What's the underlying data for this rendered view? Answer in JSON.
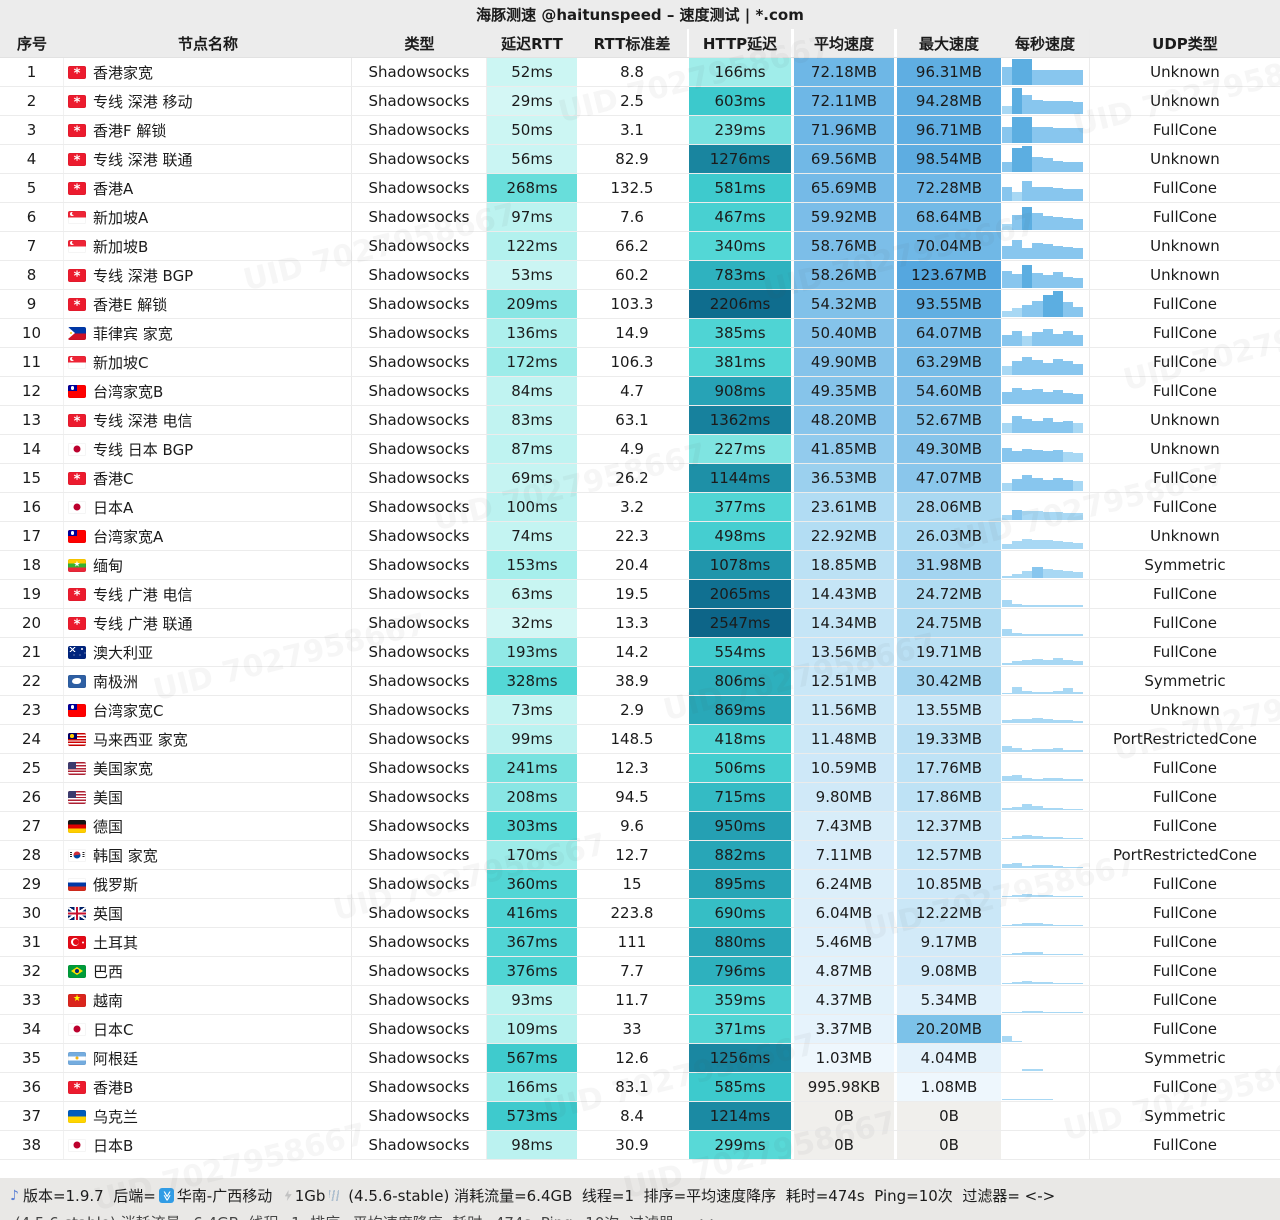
{
  "title": "海豚测速 @haitunspeed – 速度测试 | *.com",
  "columns": [
    "序号",
    "节点名称",
    "类型",
    "延迟RTT",
    "RTT标准差",
    "HTTP延迟",
    "平均速度",
    "最大速度",
    "每秒速度",
    "UDP类型"
  ],
  "watermark": {
    "text": "UID 7027958667"
  },
  "colors": {
    "teal_scale": [
      [
        0,
        "#def9f7"
      ],
      [
        150,
        "#a9efec"
      ],
      [
        300,
        "#57d9d7"
      ],
      [
        600,
        "#3cc9cc"
      ],
      [
        900,
        "#27a4b6"
      ],
      [
        1300,
        "#18839e"
      ],
      [
        2100,
        "#106f90"
      ],
      [
        2600,
        "#0d6487"
      ]
    ],
    "blue_scale": [
      [
        1,
        "#eef7fd"
      ],
      [
        10,
        "#cfe9f8"
      ],
      [
        25,
        "#aedbf2"
      ],
      [
        50,
        "#85c3ea"
      ],
      [
        75,
        "#6bb5e5"
      ],
      [
        100,
        "#5dade1"
      ],
      [
        130,
        "#53a6de"
      ]
    ],
    "zero_speed_bg": "#f0efec",
    "bar_dark": "#5caee1",
    "bar_mid": "#88c6ee",
    "bar_light": "#a8d8f4"
  },
  "rows": [
    {
      "idx": 1,
      "flag": "hk",
      "name": "香港家宽",
      "type": "Shadowsocks",
      "rtt": "52ms",
      "rtt_ms": 52,
      "std": "8.8",
      "http": "166ms",
      "http_ms": 166,
      "avg": "72.18MB",
      "avg_mb": 72.18,
      "max": "96.31MB",
      "max_mb": 96.31,
      "udp": "Unknown",
      "spark": [
        68,
        100,
        100,
        58,
        58,
        58,
        58,
        58
      ]
    },
    {
      "idx": 2,
      "flag": "hk",
      "name": "专线 深港 移动",
      "type": "Shadowsocks",
      "rtt": "29ms",
      "rtt_ms": 29,
      "std": "2.5",
      "http": "603ms",
      "http_ms": 603,
      "avg": "72.11MB",
      "avg_mb": 72.11,
      "max": "94.28MB",
      "max_mb": 94.28,
      "udp": "Unknown",
      "spark": [
        30,
        100,
        74,
        52,
        50,
        50,
        50,
        48
      ]
    },
    {
      "idx": 3,
      "flag": "hk",
      "name": "香港F 解锁",
      "type": "Shadowsocks",
      "rtt": "50ms",
      "rtt_ms": 50,
      "std": "3.1",
      "http": "239ms",
      "http_ms": 239,
      "avg": "71.96MB",
      "avg_mb": 71.96,
      "max": "96.71MB",
      "max_mb": 96.71,
      "udp": "FullCone",
      "spark": [
        62,
        100,
        100,
        60,
        60,
        58,
        58,
        58
      ]
    },
    {
      "idx": 4,
      "flag": "hk",
      "name": "专线 深港 联通",
      "type": "Shadowsocks",
      "rtt": "56ms",
      "rtt_ms": 56,
      "std": "82.9",
      "http": "1276ms",
      "http_ms": 1276,
      "avg": "69.56MB",
      "avg_mb": 69.56,
      "max": "98.54MB",
      "max_mb": 98.54,
      "udp": "Unknown",
      "spark": [
        40,
        92,
        100,
        56,
        54,
        42,
        40,
        40
      ]
    },
    {
      "idx": 5,
      "flag": "hk",
      "name": "香港A",
      "type": "Shadowsocks",
      "rtt": "268ms",
      "rtt_ms": 268,
      "std": "132.5",
      "http": "581ms",
      "http_ms": 581,
      "avg": "65.69MB",
      "avg_mb": 65.69,
      "max": "72.28MB",
      "max_mb": 72.28,
      "udp": "FullCone",
      "spark": [
        55,
        34,
        78,
        55,
        52,
        50,
        48,
        45
      ]
    },
    {
      "idx": 6,
      "flag": "sg",
      "name": "新加坡A",
      "type": "Shadowsocks",
      "rtt": "97ms",
      "rtt_ms": 97,
      "std": "7.6",
      "http": "467ms",
      "http_ms": 467,
      "avg": "59.92MB",
      "avg_mb": 59.92,
      "max": "68.64MB",
      "max_mb": 68.64,
      "udp": "FullCone",
      "spark": [
        24,
        58,
        88,
        64,
        52,
        50,
        48,
        44
      ]
    },
    {
      "idx": 7,
      "flag": "sg",
      "name": "新加坡B",
      "type": "Shadowsocks",
      "rtt": "122ms",
      "rtt_ms": 122,
      "std": "66.2",
      "http": "340ms",
      "http_ms": 340,
      "avg": "58.76MB",
      "avg_mb": 58.76,
      "max": "70.04MB",
      "max_mb": 70.04,
      "udp": "Unknown",
      "spark": [
        50,
        72,
        44,
        62,
        58,
        50,
        46,
        44
      ]
    },
    {
      "idx": 8,
      "flag": "hk",
      "name": "专线 深港 BGP",
      "type": "Shadowsocks",
      "rtt": "53ms",
      "rtt_ms": 53,
      "std": "60.2",
      "http": "783ms",
      "http_ms": 783,
      "avg": "58.26MB",
      "avg_mb": 58.26,
      "max": "123.67MB",
      "max_mb": 123.67,
      "udp": "Unknown",
      "spark": [
        66,
        52,
        88,
        58,
        50,
        62,
        42,
        40
      ]
    },
    {
      "idx": 9,
      "flag": "hk",
      "name": "香港E 解锁",
      "type": "Shadowsocks",
      "rtt": "209ms",
      "rtt_ms": 209,
      "std": "103.3",
      "http": "2206ms",
      "http_ms": 2206,
      "avg": "54.32MB",
      "avg_mb": 54.32,
      "max": "93.55MB",
      "max_mb": 93.55,
      "udp": "FullCone",
      "spark": [
        24,
        34,
        48,
        62,
        84,
        100,
        56,
        40
      ]
    },
    {
      "idx": 10,
      "flag": "ph",
      "name": "菲律宾 家宽",
      "type": "Shadowsocks",
      "rtt": "136ms",
      "rtt_ms": 136,
      "std": "14.9",
      "http": "385ms",
      "http_ms": 385,
      "avg": "50.40MB",
      "avg_mb": 50.4,
      "max": "64.07MB",
      "max_mb": 64.07,
      "udp": "FullCone",
      "spark": [
        42,
        58,
        38,
        52,
        66,
        48,
        56,
        44
      ]
    },
    {
      "idx": 11,
      "flag": "sg",
      "name": "新加坡C",
      "type": "Shadowsocks",
      "rtt": "172ms",
      "rtt_ms": 172,
      "std": "106.3",
      "http": "381ms",
      "http_ms": 381,
      "avg": "49.90MB",
      "avg_mb": 49.9,
      "max": "63.29MB",
      "max_mb": 63.29,
      "udp": "FullCone",
      "spark": [
        34,
        52,
        70,
        58,
        48,
        60,
        52,
        42
      ]
    },
    {
      "idx": 12,
      "flag": "tw",
      "name": "台湾家宽B",
      "type": "Shadowsocks",
      "rtt": "84ms",
      "rtt_ms": 84,
      "std": "4.7",
      "http": "908ms",
      "http_ms": 908,
      "avg": "49.35MB",
      "avg_mb": 49.35,
      "max": "54.60MB",
      "max_mb": 54.6,
      "udp": "FullCone",
      "spark": [
        46,
        60,
        52,
        56,
        48,
        52,
        44,
        40
      ]
    },
    {
      "idx": 13,
      "flag": "hk",
      "name": "专线 深港 电信",
      "type": "Shadowsocks",
      "rtt": "83ms",
      "rtt_ms": 83,
      "std": "63.1",
      "http": "1362ms",
      "http_ms": 1362,
      "avg": "48.20MB",
      "avg_mb": 48.2,
      "max": "52.67MB",
      "max_mb": 52.67,
      "udp": "Unknown",
      "spark": [
        38,
        64,
        52,
        48,
        56,
        44,
        48,
        38
      ]
    },
    {
      "idx": 14,
      "flag": "jp",
      "name": "专线 日本 BGP",
      "type": "Shadowsocks",
      "rtt": "87ms",
      "rtt_ms": 87,
      "std": "4.9",
      "http": "227ms",
      "http_ms": 227,
      "avg": "41.85MB",
      "avg_mb": 41.85,
      "max": "49.30MB",
      "max_mb": 49.3,
      "udp": "Unknown",
      "spark": [
        55,
        42,
        50,
        46,
        42,
        46,
        38,
        36
      ]
    },
    {
      "idx": 15,
      "flag": "hk",
      "name": "香港C",
      "type": "Shadowsocks",
      "rtt": "69ms",
      "rtt_ms": 69,
      "std": "26.2",
      "http": "1144ms",
      "http_ms": 1144,
      "avg": "36.53MB",
      "avg_mb": 36.53,
      "max": "47.07MB",
      "max_mb": 47.07,
      "udp": "FullCone",
      "spark": [
        32,
        46,
        60,
        50,
        42,
        50,
        42,
        38
      ]
    },
    {
      "idx": 16,
      "flag": "jp",
      "name": "日本A",
      "type": "Shadowsocks",
      "rtt": "100ms",
      "rtt_ms": 100,
      "std": "3.2",
      "http": "377ms",
      "http_ms": 377,
      "avg": "23.61MB",
      "avg_mb": 23.61,
      "max": "28.06MB",
      "max_mb": 28.06,
      "udp": "FullCone",
      "spark": [
        18,
        40,
        36,
        34,
        32,
        30,
        28,
        26
      ]
    },
    {
      "idx": 17,
      "flag": "tw",
      "name": "台湾家宽A",
      "type": "Shadowsocks",
      "rtt": "74ms",
      "rtt_ms": 74,
      "std": "22.3",
      "http": "498ms",
      "http_ms": 498,
      "avg": "22.92MB",
      "avg_mb": 22.92,
      "max": "26.03MB",
      "max_mb": 26.03,
      "udp": "Unknown",
      "spark": [
        20,
        32,
        38,
        36,
        33,
        31,
        28,
        24
      ]
    },
    {
      "idx": 18,
      "flag": "mm",
      "name": "缅甸",
      "type": "Shadowsocks",
      "rtt": "153ms",
      "rtt_ms": 153,
      "std": "20.4",
      "http": "1078ms",
      "http_ms": 1078,
      "avg": "18.85MB",
      "avg_mb": 18.85,
      "max": "31.98MB",
      "max_mb": 31.98,
      "udp": "Symmetric",
      "spark": [
        8,
        16,
        28,
        42,
        35,
        32,
        28,
        22
      ]
    },
    {
      "idx": 19,
      "flag": "hk",
      "name": "专线 广港 电信",
      "type": "Shadowsocks",
      "rtt": "63ms",
      "rtt_ms": 63,
      "std": "19.5",
      "http": "2065ms",
      "http_ms": 2065,
      "avg": "14.43MB",
      "avg_mb": 14.43,
      "max": "24.72MB",
      "max_mb": 24.72,
      "udp": "FullCone",
      "spark": [
        26,
        11,
        9,
        9,
        9,
        8,
        8,
        8
      ]
    },
    {
      "idx": 20,
      "flag": "hk",
      "name": "专线 广港 联通",
      "type": "Shadowsocks",
      "rtt": "32ms",
      "rtt_ms": 32,
      "std": "13.3",
      "http": "2547ms",
      "http_ms": 2547,
      "avg": "14.34MB",
      "avg_mb": 14.34,
      "max": "24.75MB",
      "max_mb": 24.75,
      "udp": "FullCone",
      "spark": [
        28,
        11,
        9,
        8,
        8,
        8,
        8,
        7
      ]
    },
    {
      "idx": 21,
      "flag": "au",
      "name": "澳大利亚",
      "type": "Shadowsocks",
      "rtt": "193ms",
      "rtt_ms": 193,
      "std": "14.2",
      "http": "554ms",
      "http_ms": 554,
      "avg": "13.56MB",
      "avg_mb": 13.56,
      "max": "19.71MB",
      "max_mb": 19.71,
      "udp": "FullCone",
      "spark": [
        7,
        14,
        20,
        23,
        18,
        26,
        20,
        16
      ]
    },
    {
      "idx": 22,
      "flag": "aq",
      "name": "南极洲",
      "type": "Shadowsocks",
      "rtt": "328ms",
      "rtt_ms": 328,
      "std": "38.9",
      "http": "806ms",
      "http_ms": 806,
      "avg": "12.51MB",
      "avg_mb": 12.51,
      "max": "30.42MB",
      "max_mb": 30.42,
      "udp": "Symmetric",
      "spark": [
        5,
        27,
        11,
        9,
        9,
        11,
        23,
        9
      ]
    },
    {
      "idx": 23,
      "flag": "tw",
      "name": "台湾家宽C",
      "type": "Shadowsocks",
      "rtt": "73ms",
      "rtt_ms": 73,
      "std": "2.9",
      "http": "869ms",
      "http_ms": 869,
      "avg": "11.56MB",
      "avg_mb": 11.56,
      "max": "13.55MB",
      "max_mb": 13.55,
      "udp": "Unknown",
      "spark": [
        11,
        16,
        14,
        18,
        15,
        13,
        11,
        9
      ]
    },
    {
      "idx": 24,
      "flag": "my",
      "name": "马来西亚 家宽",
      "type": "Shadowsocks",
      "rtt": "99ms",
      "rtt_ms": 99,
      "std": "148.5",
      "http": "418ms",
      "http_ms": 418,
      "avg": "11.48MB",
      "avg_mb": 11.48,
      "max": "19.33MB",
      "max_mb": 19.33,
      "udp": "PortRestrictedCone",
      "spark": [
        22,
        16,
        9,
        13,
        11,
        15,
        9,
        7
      ]
    },
    {
      "idx": 25,
      "flag": "us",
      "name": "美国家宽",
      "type": "Shadowsocks",
      "rtt": "241ms",
      "rtt_ms": 241,
      "std": "12.3",
      "http": "506ms",
      "http_ms": 506,
      "avg": "10.59MB",
      "avg_mb": 10.59,
      "max": "17.76MB",
      "max_mb": 17.76,
      "udp": "FullCone",
      "spark": [
        18,
        22,
        11,
        7,
        13,
        11,
        9,
        7
      ]
    },
    {
      "idx": 26,
      "flag": "us",
      "name": "美国",
      "type": "Shadowsocks",
      "rtt": "208ms",
      "rtt_ms": 208,
      "std": "94.5",
      "http": "715ms",
      "http_ms": 715,
      "avg": "9.80MB",
      "avg_mb": 9.8,
      "max": "17.86MB",
      "max_mb": 17.86,
      "udp": "FullCone",
      "spark": [
        7,
        11,
        22,
        14,
        9,
        6,
        5,
        5
      ]
    },
    {
      "idx": 27,
      "flag": "de",
      "name": "德国",
      "type": "Shadowsocks",
      "rtt": "303ms",
      "rtt_ms": 303,
      "std": "9.6",
      "http": "950ms",
      "http_ms": 950,
      "avg": "7.43MB",
      "avg_mb": 7.43,
      "max": "12.37MB",
      "max_mb": 12.37,
      "udp": "FullCone",
      "spark": [
        5,
        12,
        14,
        12,
        7,
        6,
        5,
        4
      ]
    },
    {
      "idx": 28,
      "flag": "kr",
      "name": "韩国 家宽",
      "type": "Shadowsocks",
      "rtt": "170ms",
      "rtt_ms": 170,
      "std": "12.7",
      "http": "882ms",
      "http_ms": 882,
      "avg": "7.11MB",
      "avg_mb": 7.11,
      "max": "12.57MB",
      "max_mb": 12.57,
      "udp": "PortRestrictedCone",
      "spark": [
        16,
        20,
        9,
        13,
        11,
        7,
        5,
        4
      ]
    },
    {
      "idx": 29,
      "flag": "ru",
      "name": "俄罗斯",
      "type": "Shadowsocks",
      "rtt": "360ms",
      "rtt_ms": 360,
      "std": "15",
      "http": "895ms",
      "http_ms": 895,
      "avg": "6.24MB",
      "avg_mb": 6.24,
      "max": "10.85MB",
      "max_mb": 10.85,
      "udp": "FullCone",
      "spark": [
        4,
        9,
        11,
        9,
        7,
        5,
        4,
        4
      ]
    },
    {
      "idx": 30,
      "flag": "gb",
      "name": "英国",
      "type": "Shadowsocks",
      "rtt": "416ms",
      "rtt_ms": 416,
      "std": "223.8",
      "http": "690ms",
      "http_ms": 690,
      "avg": "6.04MB",
      "avg_mb": 6.04,
      "max": "12.22MB",
      "max_mb": 12.22,
      "udp": "FullCone",
      "spark": [
        4,
        7,
        12,
        11,
        7,
        5,
        4,
        3
      ]
    },
    {
      "idx": 31,
      "flag": "tr",
      "name": "土耳其",
      "type": "Shadowsocks",
      "rtt": "367ms",
      "rtt_ms": 367,
      "std": "111",
      "http": "880ms",
      "http_ms": 880,
      "avg": "5.46MB",
      "avg_mb": 5.46,
      "max": "9.17MB",
      "max_mb": 9.17,
      "udp": "FullCone",
      "spark": [
        3,
        9,
        12,
        11,
        5,
        4,
        3,
        3
      ]
    },
    {
      "idx": 32,
      "flag": "br",
      "name": "巴西",
      "type": "Shadowsocks",
      "rtt": "376ms",
      "rtt_ms": 376,
      "std": "7.7",
      "http": "796ms",
      "http_ms": 796,
      "avg": "4.87MB",
      "avg_mb": 4.87,
      "max": "9.08MB",
      "max_mb": 9.08,
      "udp": "FullCone",
      "spark": [
        4,
        7,
        11,
        9,
        7,
        5,
        4,
        3
      ]
    },
    {
      "idx": 33,
      "flag": "vn",
      "name": "越南",
      "type": "Shadowsocks",
      "rtt": "93ms",
      "rtt_ms": 93,
      "std": "11.7",
      "http": "359ms",
      "http_ms": 359,
      "avg": "4.37MB",
      "avg_mb": 4.37,
      "max": "5.34MB",
      "max_mb": 5.34,
      "udp": "FullCone",
      "spark": [
        3,
        5,
        7,
        7,
        5,
        4,
        4,
        3
      ]
    },
    {
      "idx": 34,
      "flag": "jp",
      "name": "日本C",
      "type": "Shadowsocks",
      "rtt": "109ms",
      "rtt_ms": 109,
      "std": "33",
      "http": "371ms",
      "http_ms": 371,
      "avg": "3.37MB",
      "avg_mb": 3.37,
      "max": "20.20MB",
      "max_mb": 20.2,
      "max_color": "#7cc2e9",
      "udp": "FullCone",
      "spark": [
        22,
        4,
        0,
        0,
        0,
        0,
        0,
        0
      ]
    },
    {
      "idx": 35,
      "flag": "ar",
      "name": "阿根廷",
      "type": "Shadowsocks",
      "rtt": "567ms",
      "rtt_ms": 567,
      "std": "12.6",
      "http": "1256ms",
      "http_ms": 1256,
      "avg": "1.03MB",
      "avg_mb": 1.03,
      "max": "4.04MB",
      "max_mb": 4.04,
      "udp": "Symmetric",
      "spark": [
        0,
        0,
        7,
        9,
        0,
        0,
        0,
        0
      ]
    },
    {
      "idx": 36,
      "flag": "hk",
      "name": "香港B",
      "type": "Shadowsocks",
      "rtt": "166ms",
      "rtt_ms": 166,
      "std": "83.1",
      "http": "585ms",
      "http_ms": 585,
      "avg": "995.98KB",
      "avg_mb": null,
      "max": "1.08MB",
      "max_mb": 1.08,
      "udp": "FullCone",
      "spark": [
        3,
        3,
        2,
        2,
        2,
        0,
        0,
        0
      ]
    },
    {
      "idx": 37,
      "flag": "ua",
      "name": "乌克兰",
      "type": "Shadowsocks",
      "rtt": "573ms",
      "rtt_ms": 573,
      "std": "8.4",
      "http": "1214ms",
      "http_ms": 1214,
      "avg": "0B",
      "avg_mb": null,
      "max": "0B",
      "max_mb": null,
      "udp": "Symmetric",
      "spark": [
        0,
        0,
        0,
        0,
        0,
        0,
        0,
        0
      ]
    },
    {
      "idx": 38,
      "flag": "jp",
      "name": "日本B",
      "type": "Shadowsocks",
      "rtt": "98ms",
      "rtt_ms": 98,
      "std": "30.9",
      "http": "299ms",
      "http_ms": 299,
      "avg": "0B",
      "avg_mb": null,
      "max": "0B",
      "max_mb": null,
      "udp": "FullCone",
      "spark": [
        0,
        0,
        0,
        0,
        0,
        0,
        0,
        0
      ]
    }
  ],
  "footer": {
    "seg1": "版本=1.9.7  后端=",
    "backend_name": "华南-广西移动  ",
    "bandwidth": "1Gb",
    "seg2": " (4.5.6-stable) 消耗流量=6.4GB  线程=1  排序=平均速度降序  耗时=474s  Ping=10次  过滤器= <->"
  }
}
